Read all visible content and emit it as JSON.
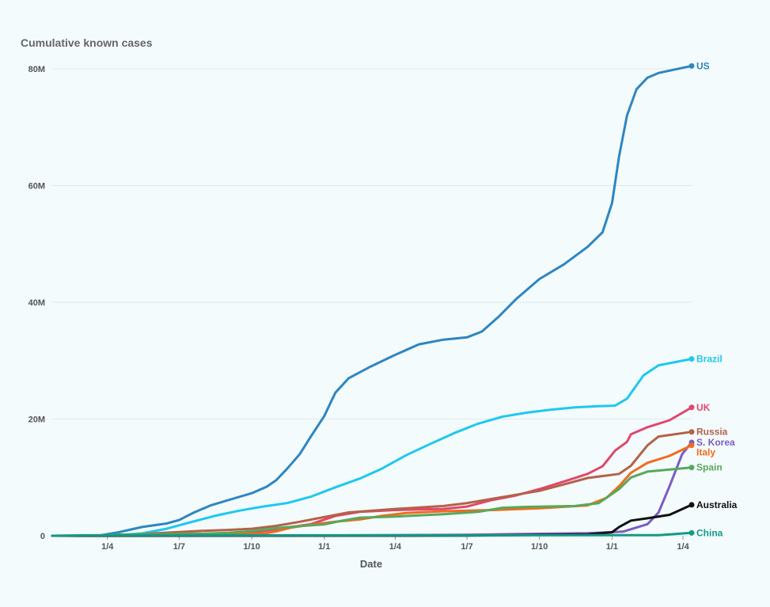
{
  "chart_data": {
    "type": "line",
    "title": "Cumulative known cases",
    "xlabel": "Date",
    "ylabel": "",
    "ylim": [
      0,
      80000000
    ],
    "xlim": [
      "2020-01-22",
      "2022-04-12"
    ],
    "yticks": [
      {
        "value": 0,
        "label": "0"
      },
      {
        "value": 20000000,
        "label": "20M"
      },
      {
        "value": 40000000,
        "label": "40M"
      },
      {
        "value": 60000000,
        "label": "60M"
      },
      {
        "value": 80000000,
        "label": "80M"
      }
    ],
    "xticks": [
      {
        "date": "2020-04-01",
        "label": "1/4"
      },
      {
        "date": "2020-07-01",
        "label": "1/7"
      },
      {
        "date": "2020-10-01",
        "label": "1/10"
      },
      {
        "date": "2021-01-01",
        "label": "1/1"
      },
      {
        "date": "2021-04-01",
        "label": "1/4"
      },
      {
        "date": "2021-07-01",
        "label": "1/7"
      },
      {
        "date": "2021-10-01",
        "label": "1/10"
      },
      {
        "date": "2022-01-01",
        "label": "1/1"
      },
      {
        "date": "2022-04-01",
        "label": "1/4"
      }
    ],
    "grid": true,
    "legend": "end-of-line labels",
    "series": [
      {
        "name": "US",
        "color": "#2e86c1",
        "points": [
          [
            "2020-01-22",
            0
          ],
          [
            "2020-03-20",
            0.02
          ],
          [
            "2020-04-15",
            0.6
          ],
          [
            "2020-05-15",
            1.5
          ],
          [
            "2020-06-15",
            2.1
          ],
          [
            "2020-07-01",
            2.7
          ],
          [
            "2020-07-20",
            4.0
          ],
          [
            "2020-08-10",
            5.2
          ],
          [
            "2020-09-01",
            6.1
          ],
          [
            "2020-10-01",
            7.3
          ],
          [
            "2020-10-20",
            8.4
          ],
          [
            "2020-11-01",
            9.5
          ],
          [
            "2020-11-15",
            11.5
          ],
          [
            "2020-12-01",
            14.0
          ],
          [
            "2020-12-15",
            17.0
          ],
          [
            "2021-01-01",
            20.5
          ],
          [
            "2021-01-15",
            24.5
          ],
          [
            "2021-02-01",
            27.0
          ],
          [
            "2021-03-01",
            29.0
          ],
          [
            "2021-04-01",
            31.0
          ],
          [
            "2021-05-01",
            32.8
          ],
          [
            "2021-06-01",
            33.6
          ],
          [
            "2021-07-01",
            34.0
          ],
          [
            "2021-07-20",
            35.0
          ],
          [
            "2021-08-10",
            37.5
          ],
          [
            "2021-09-01",
            40.5
          ],
          [
            "2021-10-01",
            44.0
          ],
          [
            "2021-11-01",
            46.5
          ],
          [
            "2021-12-01",
            49.5
          ],
          [
            "2021-12-20",
            52.0
          ],
          [
            "2022-01-01",
            57.0
          ],
          [
            "2022-01-10",
            65.0
          ],
          [
            "2022-01-20",
            72.0
          ],
          [
            "2022-02-01",
            76.5
          ],
          [
            "2022-02-15",
            78.5
          ],
          [
            "2022-03-01",
            79.3
          ],
          [
            "2022-04-12",
            80.5
          ]
        ]
      },
      {
        "name": "Brazil",
        "color": "#1fc8ee",
        "points": [
          [
            "2020-01-22",
            0
          ],
          [
            "2020-04-01",
            0
          ],
          [
            "2020-05-15",
            0.4
          ],
          [
            "2020-06-15",
            1.2
          ],
          [
            "2020-07-15",
            2.3
          ],
          [
            "2020-08-15",
            3.4
          ],
          [
            "2020-09-15",
            4.3
          ],
          [
            "2020-10-15",
            5.0
          ],
          [
            "2020-11-15",
            5.6
          ],
          [
            "2020-12-15",
            6.7
          ],
          [
            "2021-01-15",
            8.3
          ],
          [
            "2021-02-15",
            9.8
          ],
          [
            "2021-03-15",
            11.5
          ],
          [
            "2021-04-15",
            13.8
          ],
          [
            "2021-05-15",
            15.7
          ],
          [
            "2021-06-15",
            17.6
          ],
          [
            "2021-07-15",
            19.2
          ],
          [
            "2021-08-15",
            20.4
          ],
          [
            "2021-09-15",
            21.1
          ],
          [
            "2021-10-15",
            21.6
          ],
          [
            "2021-11-15",
            22.0
          ],
          [
            "2021-12-15",
            22.2
          ],
          [
            "2022-01-05",
            22.3
          ],
          [
            "2022-01-20",
            23.5
          ],
          [
            "2022-02-10",
            27.5
          ],
          [
            "2022-03-01",
            29.2
          ],
          [
            "2022-04-12",
            30.3
          ]
        ]
      },
      {
        "name": "UK",
        "color": "#e0476e",
        "points": [
          [
            "2020-01-22",
            0
          ],
          [
            "2020-04-01",
            0.02
          ],
          [
            "2020-06-01",
            0.28
          ],
          [
            "2020-08-01",
            0.32
          ],
          [
            "2020-09-15",
            0.4
          ],
          [
            "2020-10-15",
            0.8
          ],
          [
            "2020-11-15",
            1.4
          ],
          [
            "2020-12-15",
            2.0
          ],
          [
            "2021-01-15",
            3.4
          ],
          [
            "2021-02-15",
            4.1
          ],
          [
            "2021-04-01",
            4.4
          ],
          [
            "2021-06-01",
            4.6
          ],
          [
            "2021-07-01",
            5.0
          ],
          [
            "2021-08-01",
            6.1
          ],
          [
            "2021-09-01",
            6.9
          ],
          [
            "2021-10-01",
            8.0
          ],
          [
            "2021-11-01",
            9.3
          ],
          [
            "2021-12-01",
            10.6
          ],
          [
            "2021-12-20",
            11.9
          ],
          [
            "2022-01-05",
            14.6
          ],
          [
            "2022-01-20",
            16.1
          ],
          [
            "2022-01-25",
            17.4
          ],
          [
            "2022-02-15",
            18.6
          ],
          [
            "2022-03-15",
            19.8
          ],
          [
            "2022-04-12",
            22.0
          ]
        ]
      },
      {
        "name": "Russia",
        "color": "#b5614a",
        "points": [
          [
            "2020-01-22",
            0
          ],
          [
            "2020-04-01",
            0.01
          ],
          [
            "2020-05-01",
            0.12
          ],
          [
            "2020-06-01",
            0.42
          ],
          [
            "2020-07-01",
            0.65
          ],
          [
            "2020-08-01",
            0.86
          ],
          [
            "2020-09-01",
            1.0
          ],
          [
            "2020-10-01",
            1.2
          ],
          [
            "2020-11-01",
            1.7
          ],
          [
            "2020-12-01",
            2.4
          ],
          [
            "2021-01-01",
            3.2
          ],
          [
            "2021-02-01",
            4.0
          ],
          [
            "2021-04-01",
            4.6
          ],
          [
            "2021-06-01",
            5.1
          ],
          [
            "2021-07-01",
            5.6
          ],
          [
            "2021-08-01",
            6.3
          ],
          [
            "2021-10-01",
            7.7
          ],
          [
            "2021-11-01",
            8.8
          ],
          [
            "2021-12-01",
            9.9
          ],
          [
            "2022-01-10",
            10.6
          ],
          [
            "2022-01-25",
            12.0
          ],
          [
            "2022-02-15",
            15.5
          ],
          [
            "2022-03-01",
            17.0
          ],
          [
            "2022-04-12",
            17.8
          ]
        ]
      },
      {
        "name": "S. Korea",
        "color": "#7b5cc4",
        "points": [
          [
            "2020-01-22",
            0
          ],
          [
            "2020-06-01",
            0.01
          ],
          [
            "2021-01-01",
            0.06
          ],
          [
            "2021-07-01",
            0.16
          ],
          [
            "2021-12-01",
            0.45
          ],
          [
            "2022-01-15",
            0.7
          ],
          [
            "2022-02-15",
            2.0
          ],
          [
            "2022-03-01",
            4.0
          ],
          [
            "2022-03-15",
            8.5
          ],
          [
            "2022-03-31",
            14.0
          ],
          [
            "2022-04-12",
            16.0
          ]
        ]
      },
      {
        "name": "Italy",
        "color": "#f26b1d",
        "points": [
          [
            "2020-01-22",
            0
          ],
          [
            "2020-03-15",
            0.02
          ],
          [
            "2020-04-15",
            0.16
          ],
          [
            "2020-06-01",
            0.23
          ],
          [
            "2020-09-15",
            0.3
          ],
          [
            "2020-10-15",
            0.37
          ],
          [
            "2020-11-01",
            0.75
          ],
          [
            "2020-11-20",
            1.4
          ],
          [
            "2020-12-15",
            1.9
          ],
          [
            "2021-01-15",
            2.4
          ],
          [
            "2021-02-15",
            2.8
          ],
          [
            "2021-03-15",
            3.4
          ],
          [
            "2021-04-15",
            3.9
          ],
          [
            "2021-06-01",
            4.2
          ],
          [
            "2021-08-01",
            4.4
          ],
          [
            "2021-10-01",
            4.7
          ],
          [
            "2021-12-01",
            5.2
          ],
          [
            "2021-12-25",
            6.5
          ],
          [
            "2022-01-10",
            8.5
          ],
          [
            "2022-01-25",
            10.8
          ],
          [
            "2022-02-15",
            12.5
          ],
          [
            "2022-03-15",
            13.7
          ],
          [
            "2022-04-12",
            15.5
          ]
        ]
      },
      {
        "name": "Spain",
        "color": "#58a85c",
        "points": [
          [
            "2020-01-22",
            0
          ],
          [
            "2020-03-15",
            0.02
          ],
          [
            "2020-04-15",
            0.2
          ],
          [
            "2020-06-01",
            0.24
          ],
          [
            "2020-08-01",
            0.35
          ],
          [
            "2020-09-01",
            0.5
          ],
          [
            "2020-10-01",
            0.8
          ],
          [
            "2020-11-01",
            1.3
          ],
          [
            "2020-12-01",
            1.65
          ],
          [
            "2021-01-01",
            1.95
          ],
          [
            "2021-01-20",
            2.5
          ],
          [
            "2021-02-15",
            3.1
          ],
          [
            "2021-04-01",
            3.3
          ],
          [
            "2021-06-01",
            3.7
          ],
          [
            "2021-07-15",
            4.1
          ],
          [
            "2021-08-15",
            4.8
          ],
          [
            "2021-09-15",
            4.95
          ],
          [
            "2021-11-15",
            5.1
          ],
          [
            "2021-12-15",
            5.6
          ],
          [
            "2022-01-10",
            8.0
          ],
          [
            "2022-01-25",
            10.0
          ],
          [
            "2022-02-15",
            11.0
          ],
          [
            "2022-04-12",
            11.7
          ]
        ]
      },
      {
        "name": "Australia",
        "color": "#111111",
        "points": [
          [
            "2020-01-22",
            0
          ],
          [
            "2021-07-01",
            0.03
          ],
          [
            "2021-12-01",
            0.25
          ],
          [
            "2022-01-01",
            0.6
          ],
          [
            "2022-01-10",
            1.5
          ],
          [
            "2022-01-25",
            2.6
          ],
          [
            "2022-02-15",
            3.0
          ],
          [
            "2022-03-15",
            3.6
          ],
          [
            "2022-04-12",
            5.3
          ]
        ]
      },
      {
        "name": "China",
        "color": "#159a86",
        "points": [
          [
            "2020-01-22",
            0
          ],
          [
            "2020-03-01",
            0.08
          ],
          [
            "2022-03-01",
            0.1
          ],
          [
            "2022-04-12",
            0.5
          ]
        ]
      }
    ]
  }
}
